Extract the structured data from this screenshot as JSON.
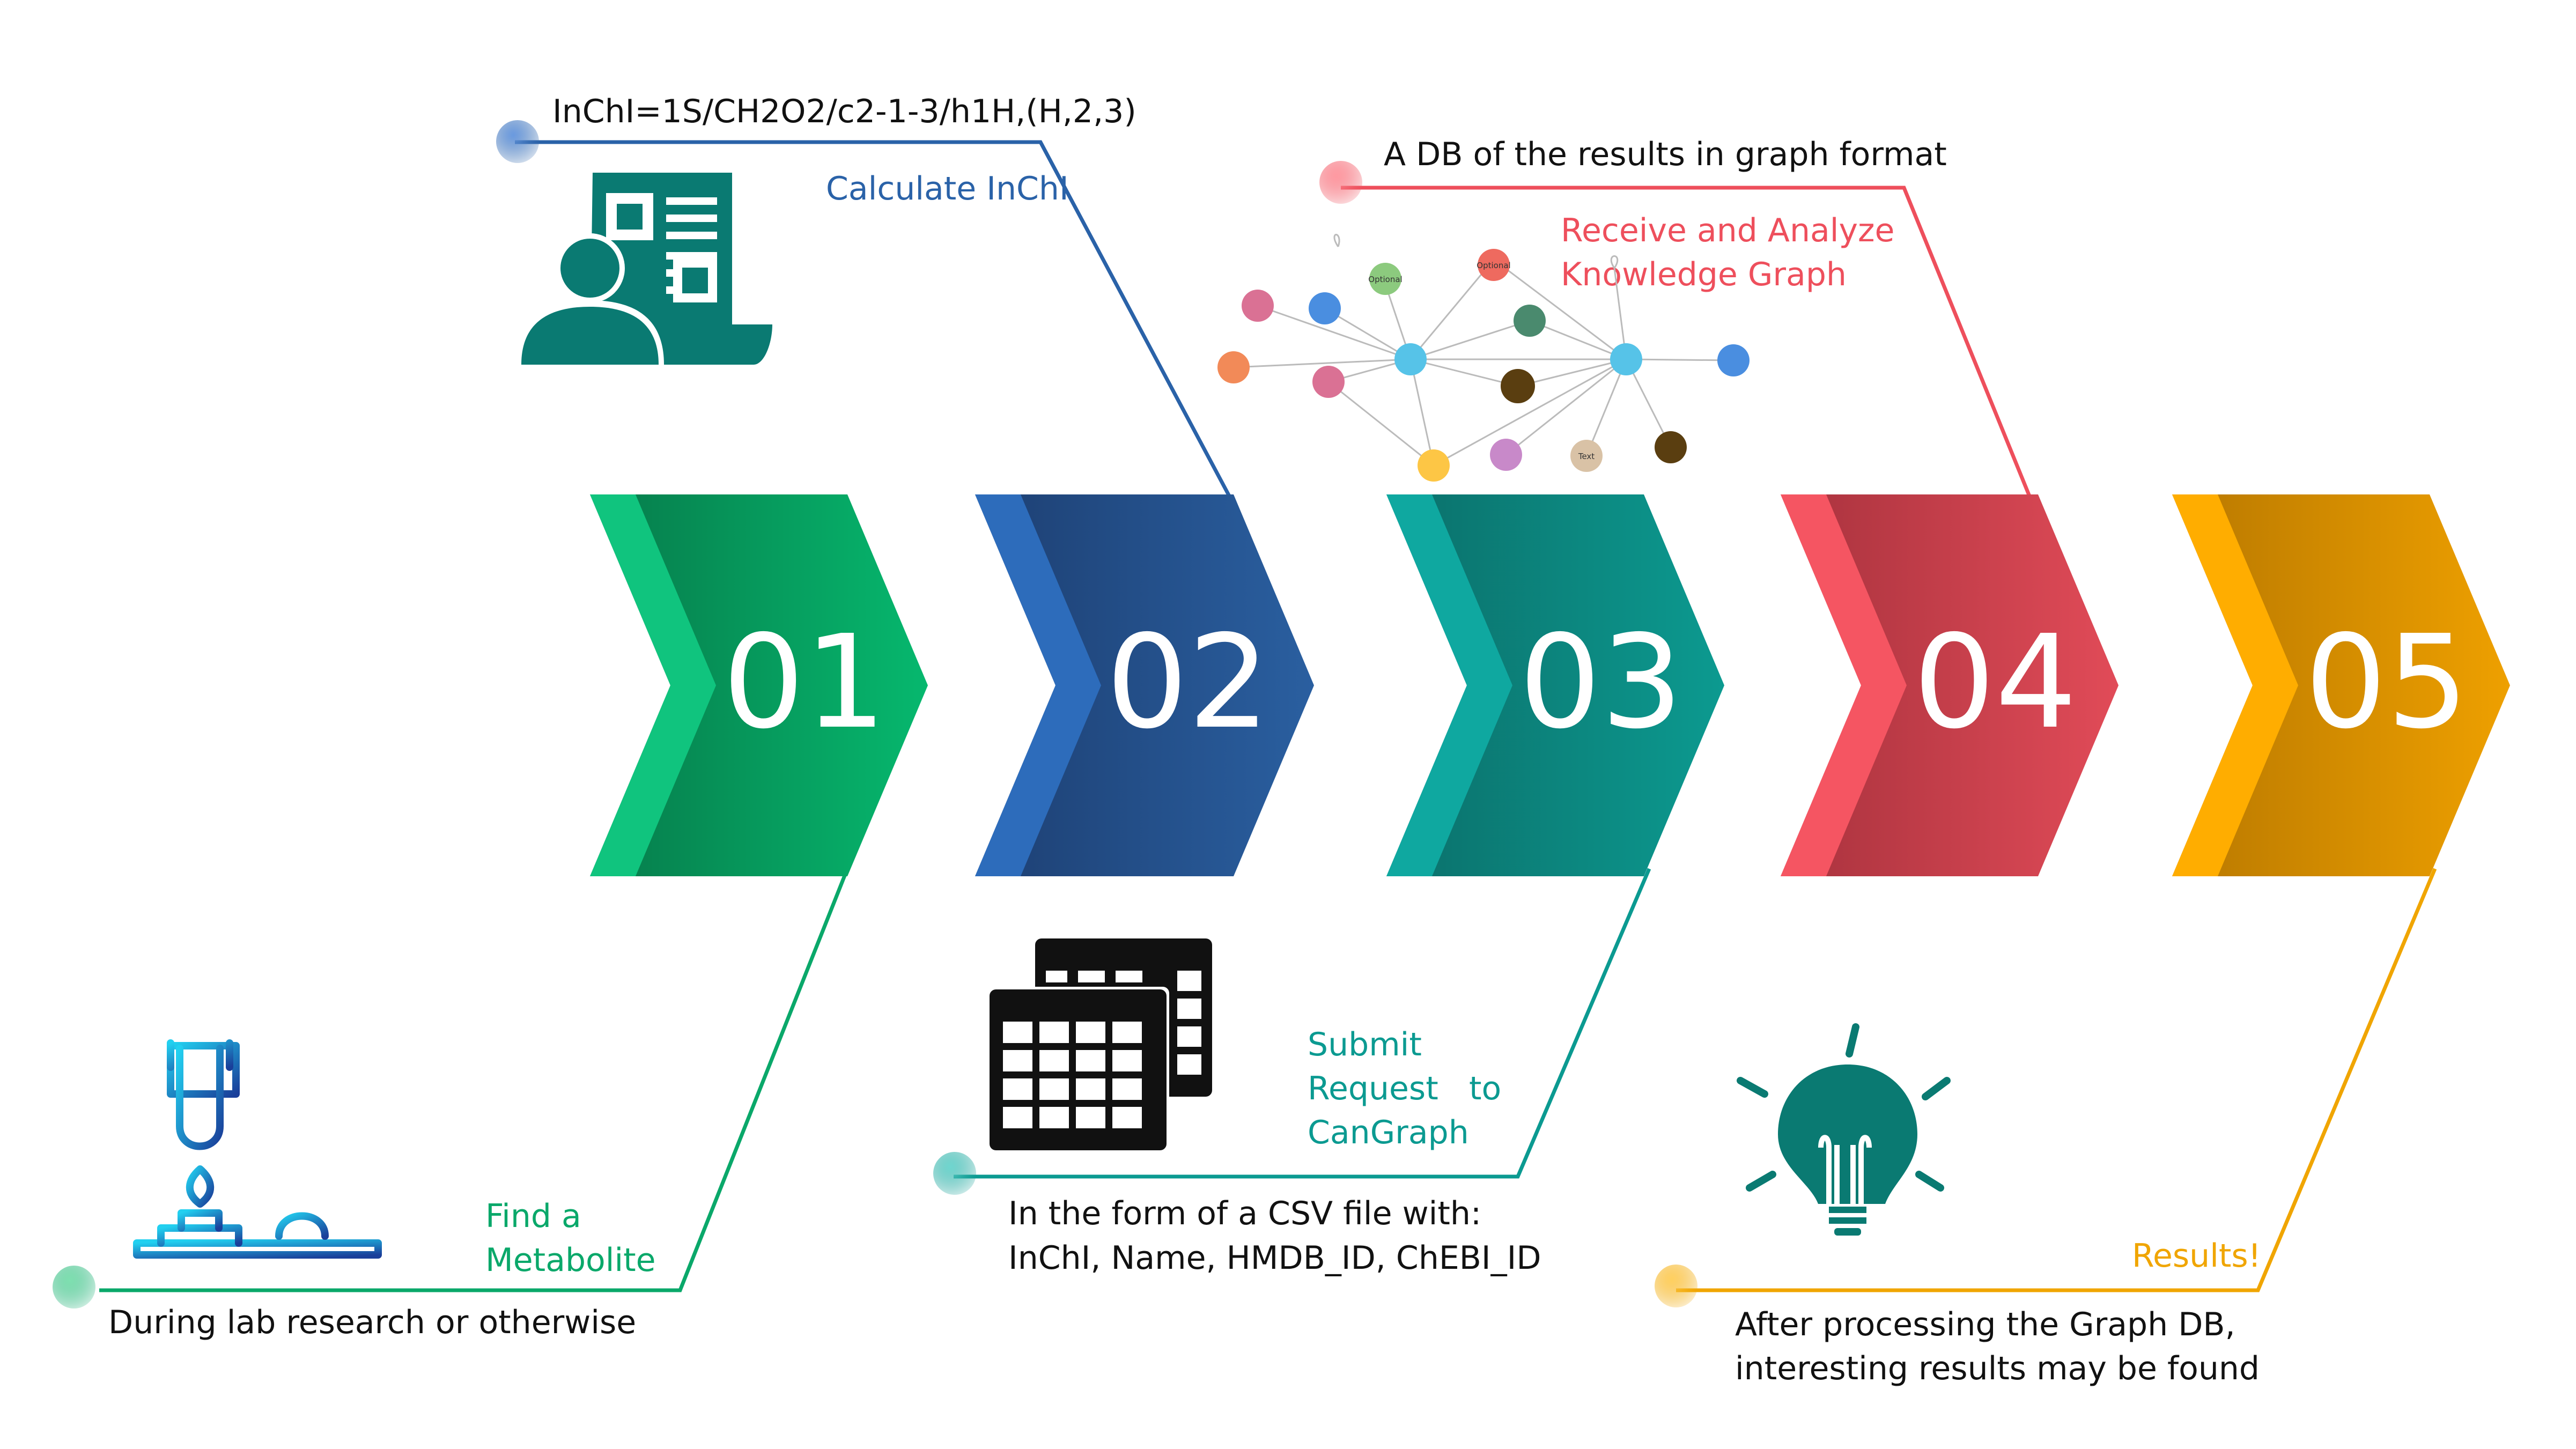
{
  "steps": [
    {
      "number": "01",
      "title_lines": [
        "Find a",
        "Metabolite"
      ],
      "description_lines": [
        "During lab research or otherwise"
      ],
      "color": "#0aa86a"
    },
    {
      "number": "02",
      "title_lines": [
        "Calculate InChI"
      ],
      "description_lines": [
        "InChI=1S/CH2O2/c2-1-3/h1H,(H,2,3)"
      ],
      "color": "#2a62a8"
    },
    {
      "number": "03",
      "title_lines": [
        "Submit",
        "Request   to",
        "CanGraph"
      ],
      "description_lines": [
        "In the form of a CSV file with:",
        "InChI, Name, HMDB_ID, ChEBI_ID"
      ],
      "color": "#0b9a91"
    },
    {
      "number": "04",
      "title_lines": [
        "Receive and Analyze",
        "Knowledge Graph"
      ],
      "description_lines": [
        "A DB of the results in graph format"
      ],
      "color": "#ee4f5c"
    },
    {
      "number": "05",
      "title_lines": [
        "Results!"
      ],
      "description_lines": [
        "After processing the Graph DB,",
        "interesting results may be found"
      ],
      "color": "#f0a500"
    }
  ],
  "graph_labels": [
    "Optional",
    "Optional",
    "Text"
  ],
  "icons": {
    "step1": "lab-burner-icon",
    "step2": "document-person-icon",
    "step3": "spreadsheet-icon",
    "step4": "knowledge-graph-icon",
    "step5": "lightbulb-icon"
  }
}
